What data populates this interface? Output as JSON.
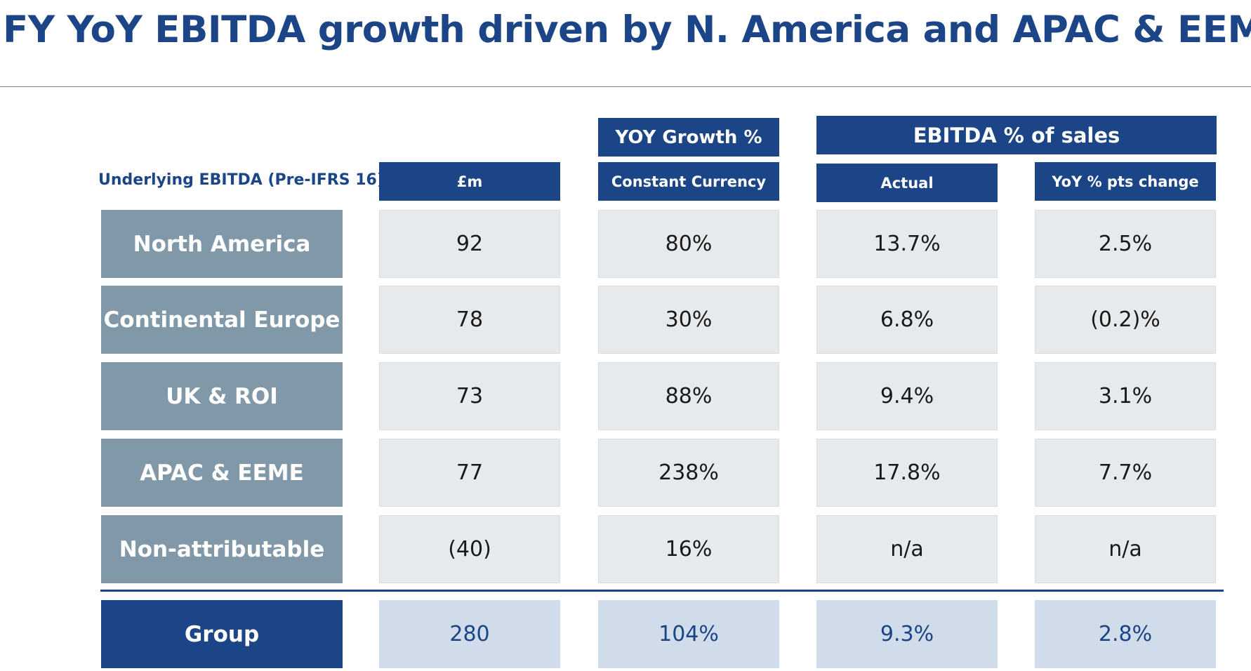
{
  "title": "FY YoY EBITDA growth driven by N. America and APAC & EEME",
  "table": {
    "row_header_label": "Underlying EBITDA (Pre-IFRS 16)",
    "group_headers": {
      "yoy_growth": "YOY Growth %",
      "ebitda_pct_sales": "EBITDA % of sales"
    },
    "columns": [
      "£m",
      "Constant Currency",
      "Actual",
      "YoY % pts change"
    ],
    "rows": [
      {
        "label": "North America",
        "values": [
          "92",
          "80%",
          "13.7%",
          "2.5%"
        ]
      },
      {
        "label": "Continental Europe",
        "values": [
          "78",
          "30%",
          "6.8%",
          "(0.2)%"
        ]
      },
      {
        "label": "UK & ROI",
        "values": [
          "73",
          "88%",
          "9.4%",
          "3.1%"
        ]
      },
      {
        "label": "APAC & EEME",
        "values": [
          "77",
          "238%",
          "17.8%",
          "7.7%"
        ]
      },
      {
        "label": "Non-attributable",
        "values": [
          "(40)",
          "16%",
          "n/a",
          "n/a"
        ]
      }
    ],
    "total": {
      "label": "Group",
      "values": [
        "280",
        "104%",
        "9.3%",
        "2.8%"
      ]
    }
  },
  "colors": {
    "brand_navy": "#1c4587",
    "label_slate": "#8198a9",
    "cell_grey": "#e6eaed",
    "total_cell_blue": "#d1dcea"
  }
}
